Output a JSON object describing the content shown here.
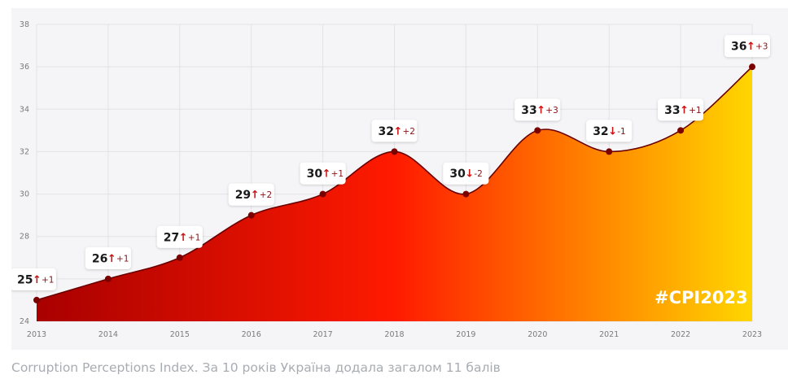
{
  "caption": "Corruption Perceptions Index. За 10 років Україна додала загалом 11 балів",
  "hashtag": "#CPI2023",
  "colors": {
    "grad_start": "#a80000",
    "grad_mid": "#ff1a00",
    "grad_orange": "#ff7a00",
    "grad_end": "#ffd600",
    "line": "#6b0000",
    "point": "#7a0000",
    "up_arrow": "#cc1010",
    "down_arrow": "#cc1010"
  },
  "chart_data": {
    "type": "area",
    "x": [
      "2013",
      "2014",
      "2015",
      "2016",
      "2017",
      "2018",
      "2019",
      "2020",
      "2021",
      "2022",
      "2023"
    ],
    "values": [
      25,
      26,
      27,
      29,
      30,
      32,
      30,
      33,
      32,
      33,
      36
    ],
    "deltas": [
      "+1",
      "+1",
      "+1",
      "+2",
      "+1",
      "+2",
      "-2",
      "+3",
      "-1",
      "+1",
      "+3"
    ],
    "directions": [
      "up",
      "up",
      "up",
      "up",
      "up",
      "up",
      "down",
      "up",
      "down",
      "up",
      "up"
    ],
    "ylim": [
      24,
      38
    ],
    "yticks": [
      "24",
      "26",
      "28",
      "30",
      "32",
      "34",
      "36",
      "38"
    ],
    "grid": true
  }
}
